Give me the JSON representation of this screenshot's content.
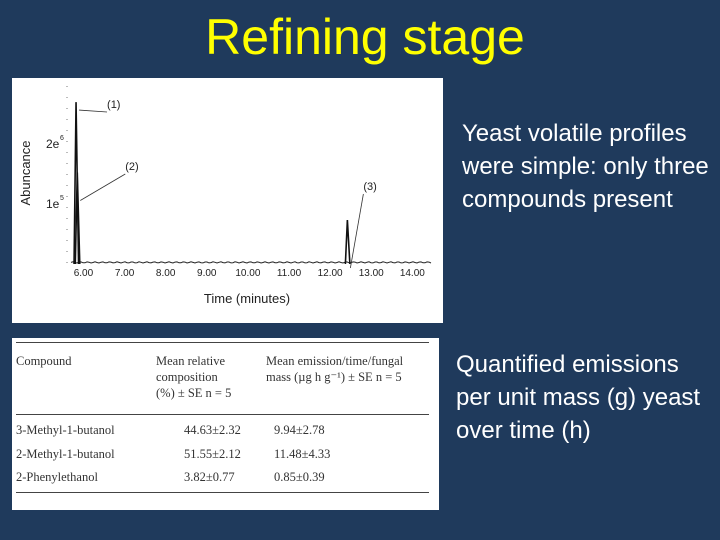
{
  "slide": {
    "title": "Refining stage",
    "bullets": [
      "Yeast volatile profiles were simple: only three compounds present",
      "Quantified emissions per unit mass (g) yeast over time (h)"
    ]
  },
  "chart_data": {
    "type": "line",
    "title": "",
    "xlabel": "Time (minutes)",
    "ylabel": "Abuncance",
    "x_ticks": [
      "6.00",
      "7.00",
      "8.00",
      "9.00",
      "10.00",
      "11.00",
      "12.00",
      "13.00",
      "14.00"
    ],
    "y_ticks": [
      "2e6",
      "1e5"
    ],
    "y_tick_parts": [
      {
        "base": "2e",
        "exp": "6"
      },
      {
        "base": "1e",
        "exp": "5"
      }
    ],
    "xlim": [
      5.6,
      14.6
    ],
    "grid": false,
    "peaks": [
      {
        "label": "(1)",
        "x": 5.82,
        "height": 0.92
      },
      {
        "label": "(2)",
        "x": 5.85,
        "height": 0.52
      },
      {
        "label": "(3)",
        "x": 12.42,
        "height": 0.25
      }
    ]
  },
  "table": {
    "headers": [
      "Compound",
      "Mean relative composition (%) ± SE n = 5",
      "Mean emission/time/fungal mass (µg h g⁻¹) ± SE n = 5"
    ],
    "header_lines": {
      "col2": [
        "Mean relative",
        "composition",
        "(%) ± SE n = 5"
      ],
      "col3": [
        "Mean emission/time/fungal",
        "mass (µg h g⁻¹) ± SE n = 5"
      ]
    },
    "rows": [
      {
        "compound": "3-Methyl-1-butanol",
        "composition": "44.63±2.32",
        "emission": "9.94±2.78"
      },
      {
        "compound": "2-Methyl-1-butanol",
        "composition": "51.55±2.12",
        "emission": "11.48±4.33"
      },
      {
        "compound": "2-Phenylethanol",
        "composition": "3.82±0.77",
        "emission": "0.85±0.39"
      }
    ]
  }
}
